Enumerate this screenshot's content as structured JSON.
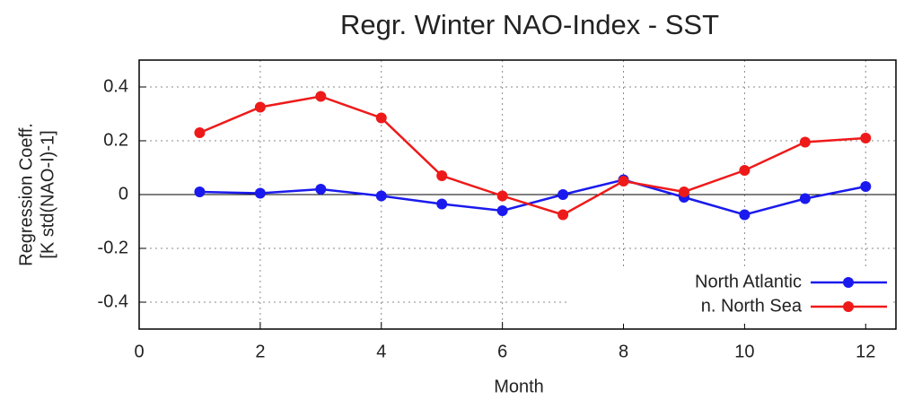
{
  "chart_data": {
    "type": "line",
    "title": "Regr. Winter NAO-Index - SST",
    "xlabel": "Month",
    "ylabel": [
      "Regression Coeff.",
      "[K std(NAO-I)-1]"
    ],
    "x": [
      1,
      2,
      3,
      4,
      5,
      6,
      7,
      8,
      9,
      10,
      11,
      12
    ],
    "series": [
      {
        "name": "North Atlantic",
        "color": "#1a1aee",
        "values": [
          0.01,
          0.005,
          0.02,
          -0.005,
          -0.035,
          -0.06,
          0,
          0.055,
          -0.01,
          -0.075,
          -0.015,
          0.03
        ]
      },
      {
        "name": "n. North Sea",
        "color": "#ee1a1a",
        "values": [
          0.23,
          0.325,
          0.365,
          0.285,
          0.07,
          -0.005,
          -0.075,
          0.05,
          0.01,
          0.09,
          0.195,
          0.21
        ]
      }
    ],
    "xlim": [
      0,
      12.5
    ],
    "xticks": [
      0,
      2,
      4,
      6,
      8,
      10,
      12
    ],
    "ylim": [
      -0.5,
      0.5
    ],
    "yticks": [
      -0.4,
      -0.2,
      0,
      0.2,
      0.4
    ],
    "grid": true,
    "legend": "lower right"
  }
}
